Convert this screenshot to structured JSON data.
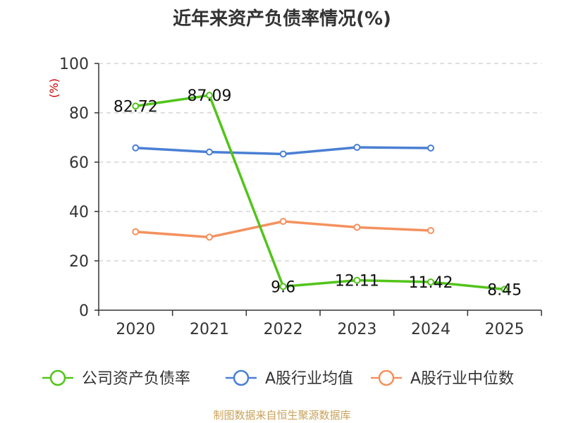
{
  "title": "近年来资产负债率情况(%)",
  "source": "制图数据来自恒生聚源数据库",
  "chart_data": {
    "type": "line",
    "title": "近年来资产负债率情况(%)",
    "ylabel": "(%)",
    "xlabel": "",
    "categories": [
      "2020",
      "2021",
      "2022",
      "2023",
      "2024",
      "2025"
    ],
    "ylim": [
      0,
      100
    ],
    "yticks": [
      0,
      20,
      40,
      60,
      80,
      100
    ],
    "grid": true,
    "legend_position": "bottom",
    "series": [
      {
        "name": "公司资产负债率",
        "color": "#52c41a",
        "values": [
          82.72,
          87.09,
          9.6,
          12.11,
          11.42,
          8.45
        ],
        "labels": [
          "82.72",
          "87.09",
          "9.6",
          "12.11",
          "11.42",
          "8.45"
        ]
      },
      {
        "name": "A股行业均值",
        "color": "#4a7fd4",
        "values": [
          65.8,
          64.1,
          63.3,
          66.0,
          65.7,
          null
        ]
      },
      {
        "name": "A股行业中位数",
        "color": "#f4915e",
        "values": [
          31.8,
          29.6,
          36.0,
          33.6,
          32.3,
          null
        ]
      }
    ]
  }
}
